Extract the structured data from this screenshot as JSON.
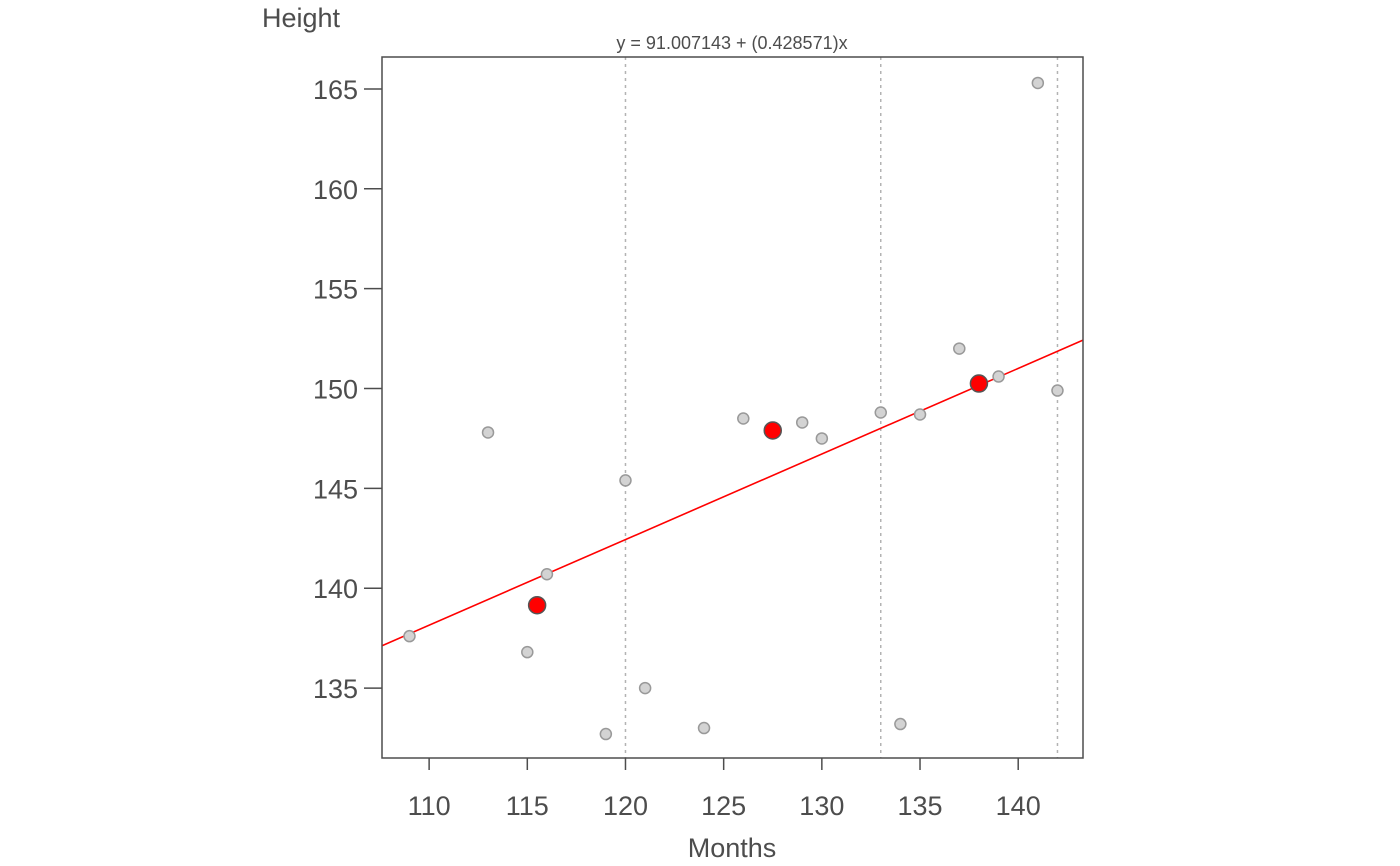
{
  "chart_data": {
    "type": "scatter",
    "title": "",
    "annotation": "y = 91.007143 + (0.428571)x",
    "xlabel": "Months",
    "ylabel": "Height",
    "xlim": [
      107.6,
      143.3
    ],
    "ylim": [
      131.5,
      166.6
    ],
    "xticks": [
      110,
      115,
      120,
      125,
      130,
      135,
      140
    ],
    "xtick_labels": [
      "110",
      "115",
      "120",
      "125",
      "130",
      "135",
      "140"
    ],
    "yticks": [
      135,
      140,
      145,
      150,
      155,
      160,
      165
    ],
    "ytick_labels": [
      "135",
      "140",
      "145",
      "150",
      "155",
      "160",
      "165"
    ],
    "grid": false,
    "vertical_reference_lines": [
      120,
      133,
      142
    ],
    "series": [
      {
        "kind": "points",
        "color": "#d3d3d3",
        "x": [
          109,
          113,
          115,
          116,
          119,
          120,
          121,
          124,
          126,
          129,
          130,
          133,
          134,
          135,
          137,
          139,
          141,
          142
        ],
        "y": [
          137.6,
          147.8,
          136.8,
          140.7,
          132.7,
          145.4,
          135.0,
          133.0,
          148.5,
          148.3,
          147.5,
          148.8,
          133.2,
          148.7,
          152.0,
          150.6,
          165.3,
          149.9
        ]
      },
      {
        "kind": "group-medians",
        "color": "#ff0000",
        "x": [
          115.5,
          127.5,
          138.0
        ],
        "y": [
          139.15,
          147.9,
          150.25
        ]
      },
      {
        "kind": "line",
        "color": "#ff0000",
        "intercept": 91.007143,
        "slope": 0.428571
      }
    ]
  }
}
